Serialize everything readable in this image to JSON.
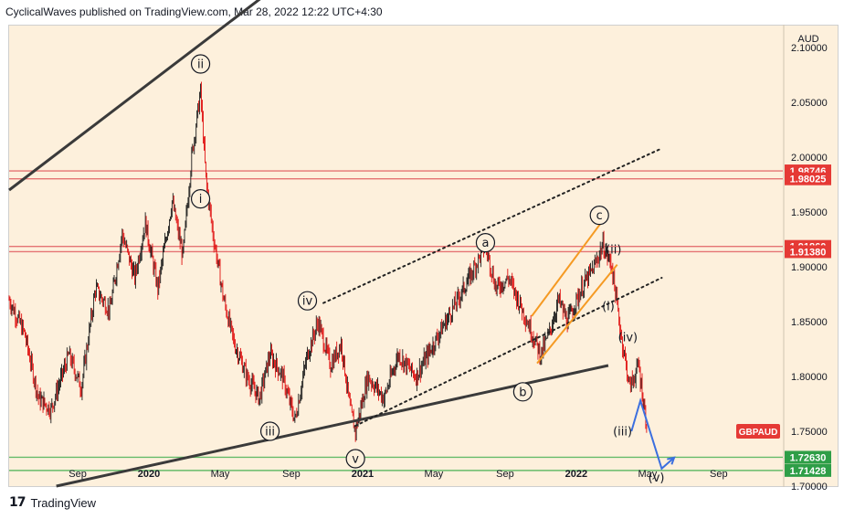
{
  "header": {
    "text": "CyclicalWaves published on TradingView.com, Mar 28, 2022 12:22 UTC+4:30"
  },
  "footer": {
    "logo": "17",
    "brand": "TradingView"
  },
  "chart_data": {
    "type": "candlestick",
    "currency": "AUD",
    "symbol": "GBPAUD",
    "last_price": "1.75",
    "ylim": [
      1.7,
      2.12
    ],
    "y_ticks": [
      "2.10000",
      "2.05000",
      "2.00000",
      "1.95000",
      "1.90000",
      "1.85000",
      "1.80000",
      "1.75000",
      "1.70000"
    ],
    "x_ticks": [
      {
        "label": "Sep",
        "bold": false,
        "t": 1
      },
      {
        "label": "2020",
        "bold": true,
        "t": 5
      },
      {
        "label": "May",
        "bold": false,
        "t": 9
      },
      {
        "label": "Sep",
        "bold": false,
        "t": 13
      },
      {
        "label": "2021",
        "bold": true,
        "t": 17
      },
      {
        "label": "May",
        "bold": false,
        "t": 21
      },
      {
        "label": "Sep",
        "bold": false,
        "t": 25
      },
      {
        "label": "2022",
        "bold": true,
        "t": 29
      },
      {
        "label": "May",
        "bold": false,
        "t": 33
      },
      {
        "label": "Sep",
        "bold": false,
        "t": 37
      }
    ],
    "price_path": [
      [
        -2.85,
        1.87
      ],
      [
        -2.0,
        1.84
      ],
      [
        -1.2,
        1.78
      ],
      [
        -0.5,
        1.77
      ],
      [
        0.5,
        1.82
      ],
      [
        1.2,
        1.79
      ],
      [
        2.0,
        1.88
      ],
      [
        2.8,
        1.86
      ],
      [
        3.5,
        1.93
      ],
      [
        4.2,
        1.89
      ],
      [
        4.8,
        1.94
      ],
      [
        5.5,
        1.88
      ],
      [
        6.3,
        1.96
      ],
      [
        6.9,
        1.91
      ],
      [
        7.4,
        2.0
      ],
      [
        7.9,
        2.06
      ],
      [
        8.2,
        1.98
      ],
      [
        8.6,
        1.93
      ],
      [
        9.2,
        1.87
      ],
      [
        9.8,
        1.83
      ],
      [
        10.5,
        1.8
      ],
      [
        11.2,
        1.78
      ],
      [
        11.8,
        1.82
      ],
      [
        12.5,
        1.8
      ],
      [
        13.2,
        1.76
      ],
      [
        13.9,
        1.82
      ],
      [
        14.5,
        1.85
      ],
      [
        15.2,
        1.81
      ],
      [
        15.8,
        1.83
      ],
      [
        16.3,
        1.77
      ],
      [
        16.6,
        1.75
      ],
      [
        17.3,
        1.8
      ],
      [
        18.2,
        1.78
      ],
      [
        19.0,
        1.82
      ],
      [
        20.0,
        1.8
      ],
      [
        21.0,
        1.83
      ],
      [
        22.0,
        1.86
      ],
      [
        23.0,
        1.89
      ],
      [
        23.9,
        1.92
      ],
      [
        24.5,
        1.88
      ],
      [
        25.2,
        1.89
      ],
      [
        26.0,
        1.86
      ],
      [
        27.0,
        1.82
      ],
      [
        27.5,
        1.84
      ],
      [
        28.0,
        1.87
      ],
      [
        28.5,
        1.85
      ],
      [
        29.3,
        1.88
      ],
      [
        30.0,
        1.9
      ],
      [
        30.5,
        1.92
      ],
      [
        31.0,
        1.9
      ],
      [
        31.5,
        1.84
      ],
      [
        32.0,
        1.79
      ],
      [
        32.5,
        1.81
      ],
      [
        33.0,
        1.75
      ]
    ],
    "horizontal_levels": [
      {
        "value": 1.98746,
        "label": "1.98746",
        "color": "#e53935",
        "line": "#e57373"
      },
      {
        "value": 1.98025,
        "label": "1.98025",
        "color": "#e53935",
        "line": "#e57373"
      },
      {
        "value": 1.9186,
        "label": "1.91860",
        "color": "#e53935",
        "line": "#e57373"
      },
      {
        "value": 1.9138,
        "label": "1.91380",
        "color": "#e53935",
        "line": "#e57373"
      },
      {
        "value": 1.7263,
        "label": "1.72630",
        "color": "#2e9e47",
        "line": "#66bb6a"
      },
      {
        "value": 1.71428,
        "label": "1.71428",
        "color": "#2e9e47",
        "line": "#66bb6a"
      }
    ],
    "trendlines": [
      {
        "style": "solid",
        "color": "#3a3a3a",
        "from": [
          -2.85,
          1.97
        ],
        "to": [
          11.7,
          2.15
        ]
      },
      {
        "style": "solid",
        "color": "#3a3a3a",
        "from": [
          -0.2,
          1.7
        ],
        "to": [
          30.8,
          1.81
        ]
      },
      {
        "style": "dotted",
        "color": "#222222",
        "from": [
          14.8,
          1.867
        ],
        "to": [
          33.8,
          2.008
        ]
      },
      {
        "style": "dotted",
        "color": "#222222",
        "from": [
          16.6,
          1.755
        ],
        "to": [
          33.8,
          1.89
        ]
      },
      {
        "style": "solid",
        "color": "#f59a23",
        "from": [
          26.5,
          1.855
        ],
        "to": [
          30.8,
          1.949
        ]
      },
      {
        "style": "solid",
        "color": "#f59a23",
        "from": [
          26.8,
          1.812
        ],
        "to": [
          31.3,
          1.902
        ]
      }
    ],
    "projection": {
      "color": "#3b6fdf",
      "points": [
        [
          32.1,
          1.75
        ],
        [
          32.6,
          1.778
        ],
        [
          33.8,
          1.716
        ],
        [
          34.5,
          1.726
        ]
      ]
    },
    "wave_labels": [
      {
        "text": "ii",
        "t": 7.9,
        "v": 2.085,
        "circled": true
      },
      {
        "text": "i",
        "t": 7.9,
        "v": 1.962,
        "circled": true
      },
      {
        "text": "iii",
        "t": 11.8,
        "v": 1.75,
        "circled": true
      },
      {
        "text": "iv",
        "t": 13.9,
        "v": 1.869,
        "circled": true
      },
      {
        "text": "v",
        "t": 16.6,
        "v": 1.725,
        "circled": true
      },
      {
        "text": "a",
        "t": 23.9,
        "v": 1.922,
        "circled": true
      },
      {
        "text": "b",
        "t": 26.0,
        "v": 1.786,
        "circled": true
      },
      {
        "text": "c",
        "t": 30.3,
        "v": 1.947,
        "circled": true
      },
      {
        "text": "(ii)",
        "t": 31.1,
        "v": 1.916,
        "circled": false
      },
      {
        "text": "(i)",
        "t": 30.8,
        "v": 1.864,
        "circled": false
      },
      {
        "text": "(iv)",
        "t": 31.9,
        "v": 1.836,
        "circled": false
      },
      {
        "text": "(iii)",
        "t": 31.6,
        "v": 1.75,
        "circled": false
      },
      {
        "text": "(v)",
        "t": 33.5,
        "v": 1.708,
        "circled": false
      }
    ]
  }
}
